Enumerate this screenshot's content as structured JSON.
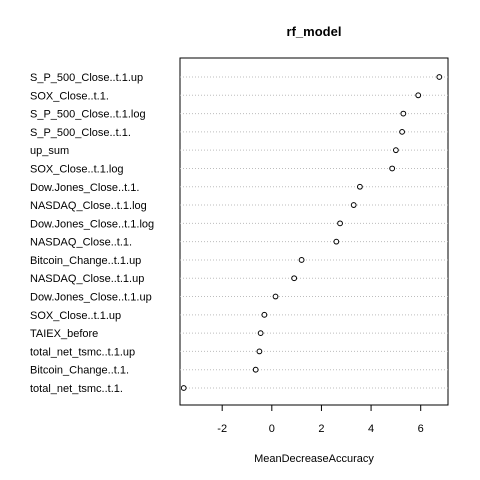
{
  "chart_data": {
    "type": "scatter",
    "style": "dotchart",
    "title": "rf_model",
    "xlabel": "MeanDecreaseAccuracy",
    "ylabel": "",
    "xlim": [
      -3.7,
      7.1
    ],
    "xticks": [
      -2,
      0,
      2,
      4,
      6
    ],
    "grid": "dotted-horizontal",
    "legend": "none",
    "points": [
      {
        "label": "S_P_500_Close..t.1.up",
        "value": 6.75
      },
      {
        "label": "SOX_Close..t.1.",
        "value": 5.9
      },
      {
        "label": "S_P_500_Close..t.1.log",
        "value": 5.3
      },
      {
        "label": "S_P_500_Close..t.1.",
        "value": 5.25
      },
      {
        "label": "up_sum",
        "value": 5.0
      },
      {
        "label": "SOX_Close..t.1.log",
        "value": 4.85
      },
      {
        "label": "Dow.Jones_Close..t.1.",
        "value": 3.55
      },
      {
        "label": "NASDAQ_Close..t.1.log",
        "value": 3.3
      },
      {
        "label": "Dow.Jones_Close..t.1.log",
        "value": 2.75
      },
      {
        "label": "NASDAQ_Close..t.1.",
        "value": 2.6
      },
      {
        "label": "Bitcoin_Change..t.1.up",
        "value": 1.2
      },
      {
        "label": "NASDAQ_Close..t.1.up",
        "value": 0.9
      },
      {
        "label": "Dow.Jones_Close..t.1.up",
        "value": 0.15
      },
      {
        "label": "SOX_Close..t.1.up",
        "value": -0.3
      },
      {
        "label": "TAIEX_before",
        "value": -0.45
      },
      {
        "label": "total_net_tsmc..t.1.up",
        "value": -0.5
      },
      {
        "label": "Bitcoin_Change..t.1.",
        "value": -0.65
      },
      {
        "label": "total_net_tsmc..t.1.",
        "value": -3.55
      }
    ]
  }
}
